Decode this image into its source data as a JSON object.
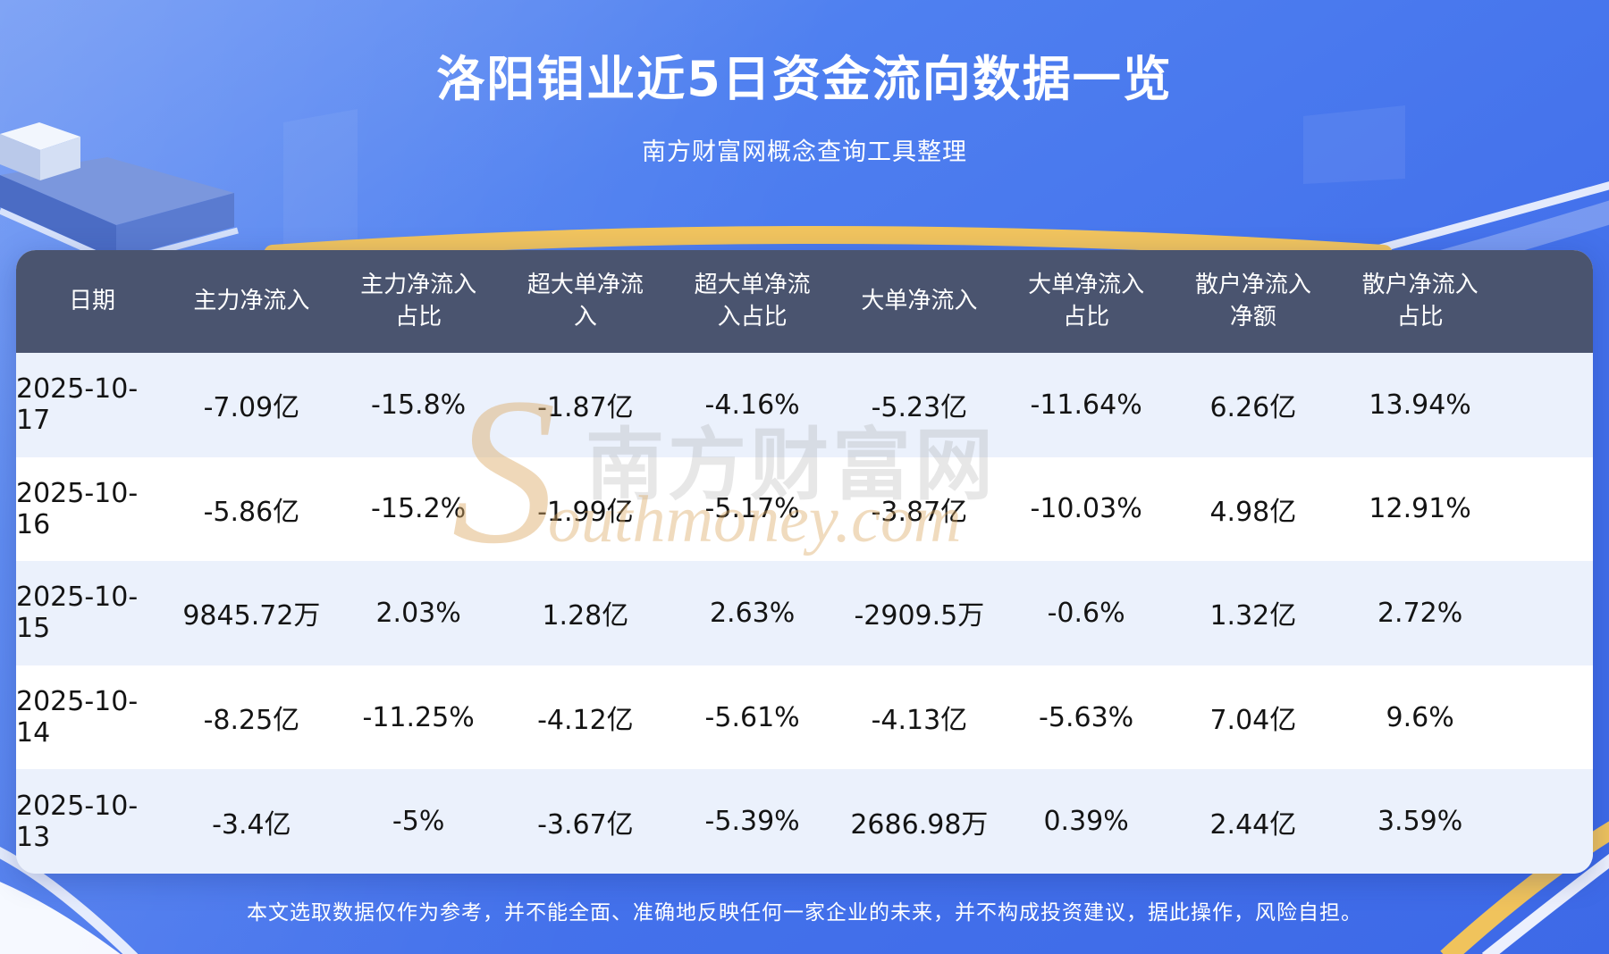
{
  "page": {
    "title": "洛阳钼业近5日资金流向数据一览",
    "subtitle": "南方财富网概念查询工具整理",
    "disclaimer": "本文选取数据仅作为参考，并不能全面、准确地反映任何一家企业的未来，并不构成投资建议，据此操作，风险自担。"
  },
  "watermark": {
    "initial": "S",
    "cjk": "南方财富网",
    "latin": "outhmoney.com"
  },
  "chart_data": {
    "type": "table",
    "title": "洛阳钼业近5日资金流向数据一览",
    "columns": [
      "日期",
      "主力净流入",
      "主力净流入占比",
      "超大单净流入",
      "超大单净流入占比",
      "大单净流入",
      "大单净流入占比",
      "散户净流入净额",
      "散户净流入占比"
    ],
    "rows": [
      [
        "2025-10-17",
        "-7.09亿",
        "-15.8%",
        "-1.87亿",
        "-4.16%",
        "-5.23亿",
        "-11.64%",
        "6.26亿",
        "13.94%"
      ],
      [
        "2025-10-16",
        "-5.86亿",
        "-15.2%",
        "-1.99亿",
        "-5.17%",
        "-3.87亿",
        "-10.03%",
        "4.98亿",
        "12.91%"
      ],
      [
        "2025-10-15",
        "9845.72万",
        "2.03%",
        "1.28亿",
        "2.63%",
        "-2909.5万",
        "-0.6%",
        "1.32亿",
        "2.72%"
      ],
      [
        "2025-10-14",
        "-8.25亿",
        "-11.25%",
        "-4.12亿",
        "-5.61%",
        "-4.13亿",
        "-5.63%",
        "7.04亿",
        "9.6%"
      ],
      [
        "2025-10-13",
        "-3.4亿",
        "-5%",
        "-3.67亿",
        "-5.39%",
        "2686.98万",
        "0.39%",
        "2.44亿",
        "3.59%"
      ]
    ]
  },
  "colors": {
    "background_top": "#6f98f4",
    "background_bottom": "#3d69e7",
    "header_bg": "#4a546f",
    "row_bg": "#ffffff",
    "row_alt_bg": "#ebf1fc",
    "text_dark": "#141414",
    "text_light": "#ffffff",
    "accent_gold": "#f1c45e",
    "watermark_gray": "#8a8a8a",
    "watermark_tan": "#dcab66"
  }
}
